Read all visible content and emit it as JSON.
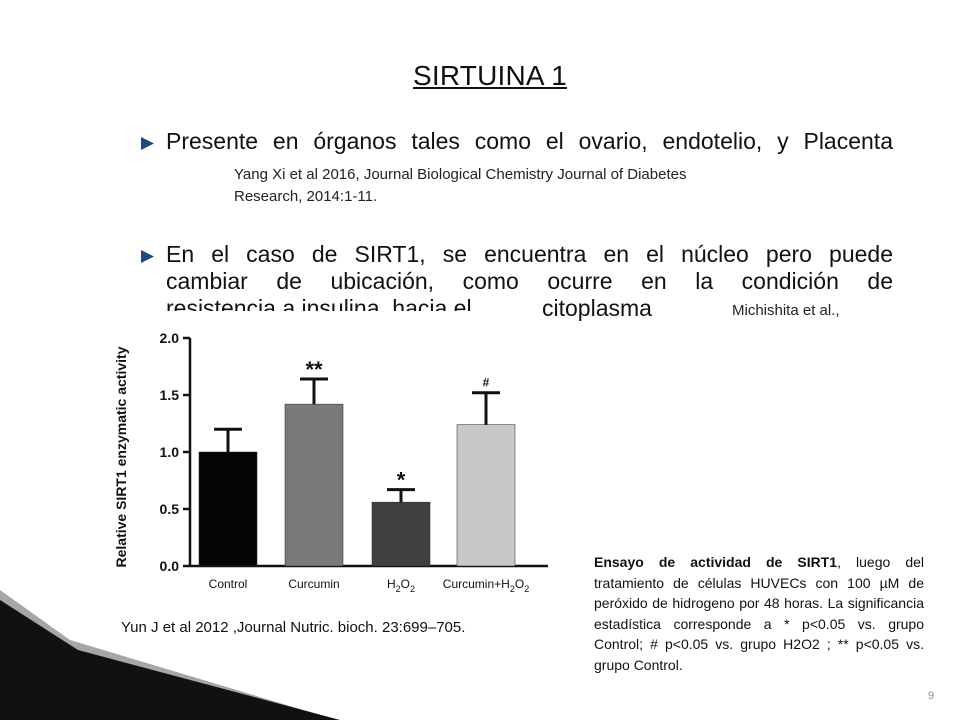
{
  "slide": {
    "title": "SIRTUINA 1",
    "bullet1": {
      "text": "Presente en órganos tales como el ovario, endotelio, y Placenta",
      "ref_line1": "Yang Xi et al 2016, Journal Biological Chemistry Journal of Diabetes",
      "ref_line2": "Research, 2014:1-11."
    },
    "bullet2": {
      "line1": "En el caso de SIRT1, se encuentra en el núcleo pero puede",
      "line2": "cambiar de ubicación, como ocurre en la condición de",
      "line3_hidden": "resistencia a insulina, hacia el",
      "line3_visible": "citoplasma",
      "ref": "Michishita et al.,"
    },
    "caption": {
      "bold": "Ensayo de actividad de SIRT1",
      "rest": ", luego del tratamiento de células HUVECs con 100 µM de peróxido de hidrogeno por 48 horas. La significancia estadística corresponde a * p<0.05 vs. grupo Control; # p<0.05 vs. grupo H2O2 ; ** p<0.05 vs. grupo Control."
    },
    "figure_ref": "Yun J et al 2012 ,Journal Nutric. bioch. 23:699–705.",
    "page_number": "9",
    "colors": {
      "accent_bullet": "#1f497d",
      "decor_dark": "#111111",
      "decor_gray": "#a6a6a6"
    }
  },
  "chart_data": {
    "type": "bar",
    "ylabel": "Relative SIRT1 enzymatic activity",
    "ylim": [
      0,
      2.0
    ],
    "yticks": [
      "0.0",
      "0.5",
      "1.0",
      "1.5",
      "2.0"
    ],
    "tick_values": [
      0,
      0.5,
      1.0,
      1.5,
      2.0
    ],
    "categories": [
      {
        "main": "Control",
        "sub": "",
        "tail": ""
      },
      {
        "main": "Curcumin",
        "sub": "",
        "tail": ""
      },
      {
        "main": "H",
        "sub": "2",
        "tail": "O",
        "sub2": "2"
      },
      {
        "main": "Curcumin+H",
        "sub": "2",
        "tail": "O",
        "sub2": "2"
      }
    ],
    "values": [
      1.0,
      1.42,
      0.56,
      1.24
    ],
    "errors": [
      0.2,
      0.22,
      0.11,
      0.28
    ],
    "annotations": [
      "",
      "**",
      "*",
      "#"
    ],
    "colors": [
      "#050505",
      "#7a7a7a",
      "#3f3f3f",
      "#c8c8c8"
    ]
  }
}
